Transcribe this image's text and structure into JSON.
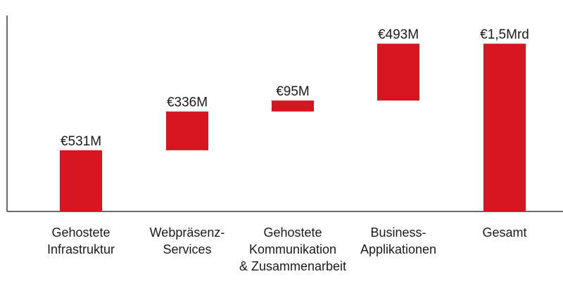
{
  "chart_data": {
    "type": "bar",
    "subtype": "waterfall",
    "title": "",
    "xlabel": "",
    "ylabel": "",
    "currency_unit": "€ million",
    "ylim": [
      0,
      1700
    ],
    "grid": false,
    "legend": "none",
    "categories": [
      [
        "Gehostete",
        "Infrastruktur"
      ],
      [
        "Webpräsenz-",
        "Services"
      ],
      [
        "Gehostete",
        "Kommunikation",
        "& Zusammenarbeit"
      ],
      [
        "Business-",
        "Applikationen"
      ],
      [
        "Gesamt"
      ]
    ],
    "values": [
      531,
      336,
      95,
      493,
      1455
    ],
    "cumulative_start": [
      0,
      531,
      867,
      962,
      0
    ],
    "data_labels": [
      "€531M",
      "€336M",
      "€95M",
      "€493M",
      "€1,5Mrd"
    ],
    "bar_color": "#d7151f"
  }
}
